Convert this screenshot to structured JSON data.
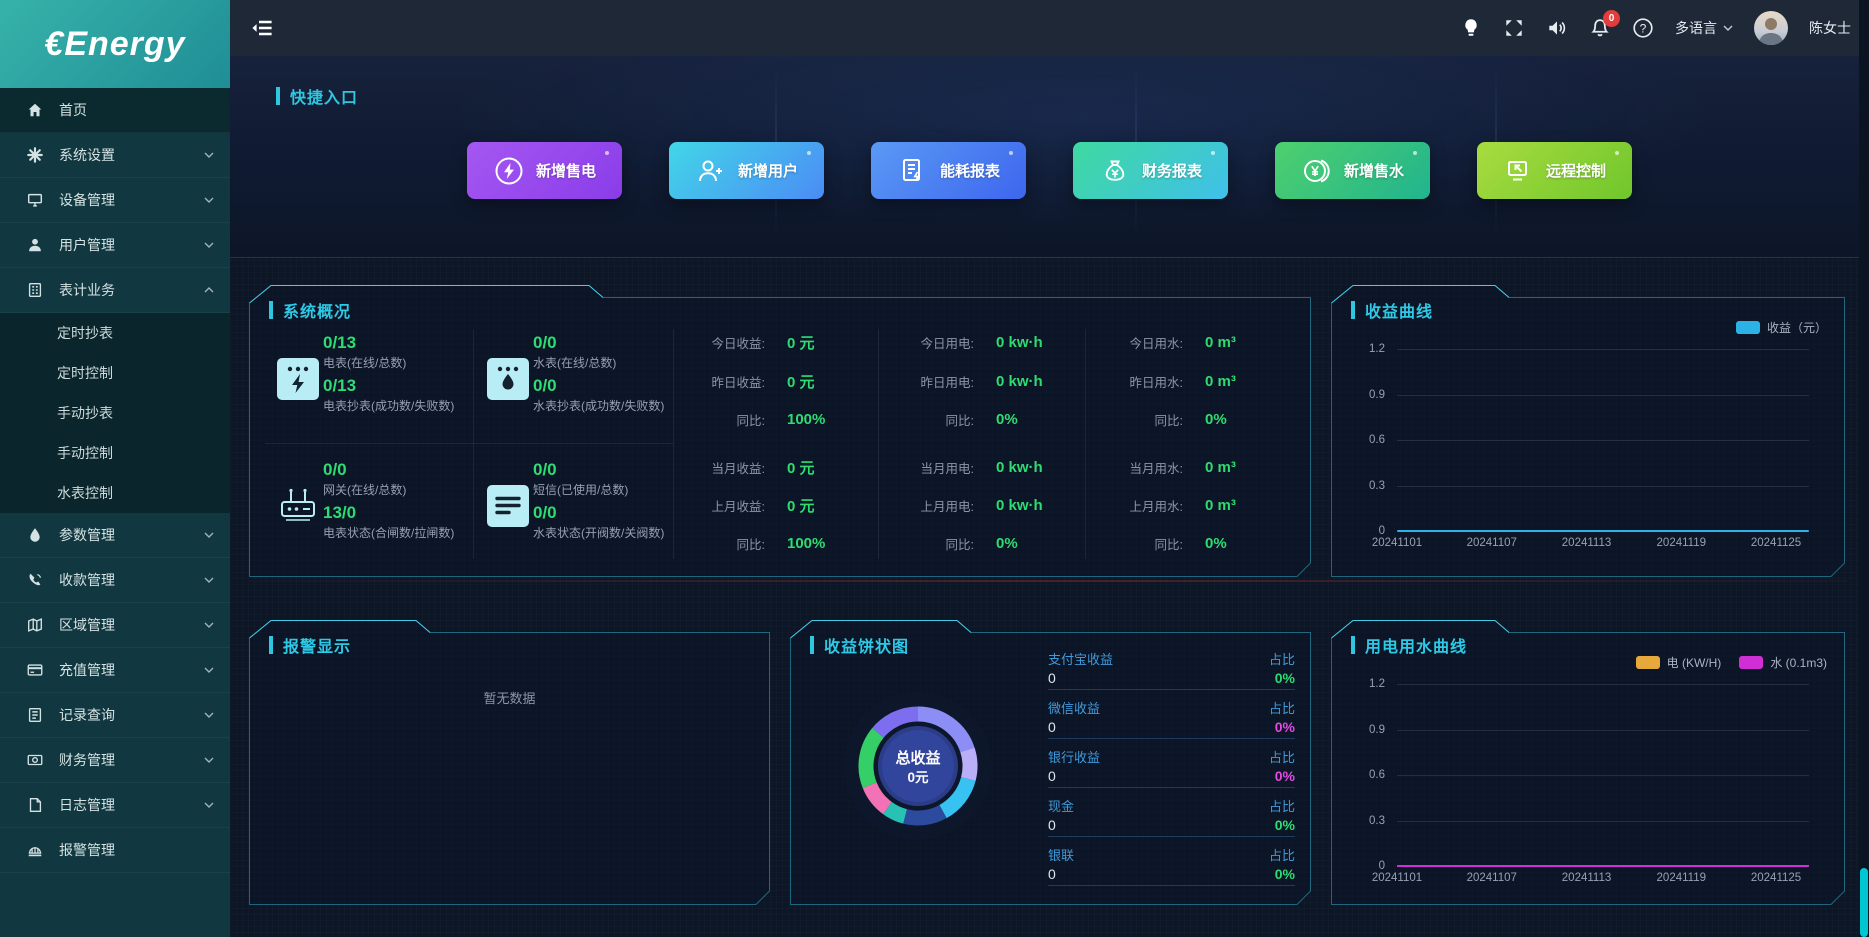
{
  "brand": {
    "logo_text": "€Energy"
  },
  "topbar": {
    "bell_badge": "0",
    "language_label": "多语言",
    "user_name": "陈女士"
  },
  "sidebar": {
    "items": [
      {
        "label": "首页"
      },
      {
        "label": "系统设置"
      },
      {
        "label": "设备管理"
      },
      {
        "label": "用户管理"
      },
      {
        "label": "表计业务"
      },
      {
        "label": "参数管理"
      },
      {
        "label": "收款管理"
      },
      {
        "label": "区域管理"
      },
      {
        "label": "充值管理"
      },
      {
        "label": "记录查询"
      },
      {
        "label": "财务管理"
      },
      {
        "label": "日志管理"
      },
      {
        "label": "报警管理"
      }
    ],
    "submenu": [
      {
        "label": "定时抄表"
      },
      {
        "label": "定时控制"
      },
      {
        "label": "手动抄表"
      },
      {
        "label": "手动控制"
      },
      {
        "label": "水表控制"
      }
    ]
  },
  "quick": {
    "title": "快捷入口",
    "buttons": [
      {
        "label": "新增售电"
      },
      {
        "label": "新增用户"
      },
      {
        "label": "能耗报表"
      },
      {
        "label": "财务报表"
      },
      {
        "label": "新增售水"
      },
      {
        "label": "远程控制"
      }
    ]
  },
  "overview": {
    "title": "系统概况",
    "meters": [
      {
        "top_value": "0/13",
        "top_label": "电表(在线/总数)",
        "bottom_value": "0/13",
        "bottom_label": "电表抄表(成功数/失败数)"
      },
      {
        "top_value": "0/0",
        "top_label": "水表(在线/总数)",
        "bottom_value": "0/0",
        "bottom_label": "水表抄表(成功数/失败数)"
      },
      {
        "top_value": "0/0",
        "top_label": "网关(在线/总数)",
        "bottom_value": "13/0",
        "bottom_label": "电表状态(合闸数/拉闸数)"
      },
      {
        "top_value": "0/0",
        "top_label": "短信(已使用/总数)",
        "bottom_value": "0/0",
        "bottom_label": "水表状态(开阀数/关阀数)"
      }
    ],
    "stats_cols": [
      {
        "rows": [
          {
            "label": "今日收益:",
            "value": "0 元"
          },
          {
            "label": "昨日收益:",
            "value": "0 元"
          },
          {
            "label": "同比:",
            "value": "100%"
          },
          {
            "label": "当月收益:",
            "value": "0 元"
          },
          {
            "label": "上月收益:",
            "value": "0 元"
          },
          {
            "label": "同比:",
            "value": "100%"
          }
        ]
      },
      {
        "rows": [
          {
            "label": "今日用电:",
            "value": "0 kw·h"
          },
          {
            "label": "昨日用电:",
            "value": "0 kw·h"
          },
          {
            "label": "同比:",
            "value": "0%"
          },
          {
            "label": "当月用电:",
            "value": "0 kw·h"
          },
          {
            "label": "上月用电:",
            "value": "0 kw·h"
          },
          {
            "label": "同比:",
            "value": "0%"
          }
        ]
      },
      {
        "rows": [
          {
            "label": "今日用水:",
            "value": "0 m³"
          },
          {
            "label": "昨日用水:",
            "value": "0 m³"
          },
          {
            "label": "同比:",
            "value": "0%"
          },
          {
            "label": "当月用水:",
            "value": "0 m³"
          },
          {
            "label": "上月用水:",
            "value": "0 m³"
          },
          {
            "label": "同比:",
            "value": "0%"
          }
        ]
      }
    ]
  },
  "alarm": {
    "title": "报警显示",
    "empty_text": "暂无数据"
  },
  "pie_panel": {
    "title": "收益饼状图",
    "items": [
      {
        "label": "支付宝收益",
        "value": "0",
        "ratio_label": "占比",
        "ratio": "0%",
        "ratio_color": "#2edc71"
      },
      {
        "label": "微信收益",
        "value": "0",
        "ratio_label": "占比",
        "ratio": "0%",
        "ratio_color": "#e24ae2"
      },
      {
        "label": "银行收益",
        "value": "0",
        "ratio_label": "占比",
        "ratio": "0%",
        "ratio_color": "#e24ae2"
      },
      {
        "label": "现金",
        "value": "0",
        "ratio_label": "占比",
        "ratio": "0%",
        "ratio_color": "#2edc71"
      },
      {
        "label": "银联",
        "value": "0",
        "ratio_label": "占比",
        "ratio": "0%",
        "ratio_color": "#2edc71"
      }
    ]
  },
  "chart_data": [
    {
      "id": "revenue-curve",
      "type": "line",
      "title": "收益曲线",
      "legend": [
        {
          "label": "收益（元）",
          "color": "#2bb3e8"
        }
      ],
      "legend_position": "top-right",
      "grid": true,
      "x": [
        "20241101",
        "20241107",
        "20241113",
        "20241119",
        "20241125"
      ],
      "yticks": [
        0,
        0.3,
        0.6,
        0.9,
        1.2
      ],
      "ylim": [
        0,
        1.2
      ],
      "series": [
        {
          "name": "收益（元）",
          "color": "#2bb3e8",
          "values": [
            0,
            0,
            0,
            0,
            0
          ]
        }
      ]
    },
    {
      "id": "usage-curve",
      "type": "line",
      "title": "用电用水曲线",
      "legend": [
        {
          "label": "电 (KW/H)",
          "color": "#e8a93c"
        },
        {
          "label": "水 (0.1m3)",
          "color": "#cf2fd4"
        }
      ],
      "legend_position": "top-right",
      "grid": true,
      "x": [
        "20241101",
        "20241107",
        "20241113",
        "20241119",
        "20241125"
      ],
      "yticks": [
        0,
        0.3,
        0.6,
        0.9,
        1.2
      ],
      "ylim": [
        0,
        1.2
      ],
      "series": [
        {
          "name": "电 (KW/H)",
          "color": "#e8a93c",
          "values": [
            0,
            0,
            0,
            0,
            0
          ]
        },
        {
          "name": "水 (0.1m3)",
          "color": "#cf2fd4",
          "values": [
            0,
            0,
            0,
            0,
            0
          ]
        }
      ]
    },
    {
      "id": "revenue-pie",
      "type": "pie",
      "title": "收益饼状图",
      "center_label": [
        "总收益",
        "0元"
      ],
      "segments": [
        {
          "color": "#8c8df5",
          "value": 20
        },
        {
          "color": "#b9aef7",
          "value": 9
        },
        {
          "color": "#38c2f2",
          "value": 13
        },
        {
          "color": "#2c4a9e",
          "value": 12
        },
        {
          "color": "#27c2b4",
          "value": 6
        },
        {
          "color": "#f272b6",
          "value": 9
        },
        {
          "color": "#35cf68",
          "value": 17
        },
        {
          "color": "#7d6ef0",
          "value": 14
        }
      ]
    }
  ]
}
